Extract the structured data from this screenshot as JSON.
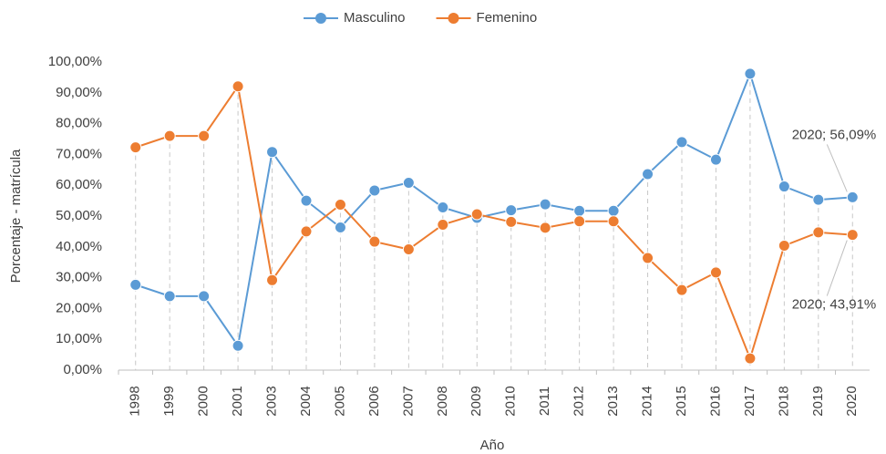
{
  "chart_data": {
    "type": "line",
    "x_label": "Año",
    "y_label": "Porcentaje - matrícula",
    "categories": [
      "1998",
      "1999",
      "2000",
      "2001",
      "2003",
      "2004",
      "2005",
      "2006",
      "2007",
      "2008",
      "2009",
      "2010",
      "2011",
      "2012",
      "2013",
      "2014",
      "2015",
      "2016",
      "2017",
      "2018",
      "2019",
      "2020"
    ],
    "series": [
      {
        "name": "Masculino",
        "color": "#5b9bd5",
        "values": [
          27.7,
          24,
          24,
          7.9,
          70.8,
          55,
          46.3,
          58.3,
          60.8,
          52.8,
          49.4,
          51.9,
          53.8,
          51.7,
          51.7,
          63.6,
          74,
          68.3,
          96.2,
          59.6,
          55.3,
          56.09
        ],
        "value_labels": [
          null,
          null,
          null,
          null,
          null,
          null,
          null,
          null,
          null,
          null,
          null,
          null,
          null,
          null,
          null,
          null,
          null,
          null,
          null,
          null,
          null,
          "2020; 56,09%"
        ]
      },
      {
        "name": "Femenino",
        "color": "#ed7d31",
        "values": [
          72.3,
          76,
          76,
          92.1,
          29.2,
          45,
          53.7,
          41.7,
          39.2,
          47.2,
          50.6,
          48.1,
          46.2,
          48.3,
          48.3,
          36.4,
          26,
          31.7,
          3.8,
          40.4,
          44.7,
          43.91
        ],
        "value_labels": [
          null,
          null,
          null,
          null,
          null,
          null,
          null,
          null,
          null,
          null,
          null,
          null,
          null,
          null,
          null,
          null,
          null,
          null,
          null,
          null,
          null,
          "2020; 43,91%"
        ]
      }
    ],
    "ylim": [
      0,
      100
    ],
    "yticks": [
      {
        "value": 0,
        "label": "0,00%"
      },
      {
        "value": 10,
        "label": "10,00%"
      },
      {
        "value": 20,
        "label": "20,00%"
      },
      {
        "value": 30,
        "label": "30,00%"
      },
      {
        "value": 40,
        "label": "40,00%"
      },
      {
        "value": 50,
        "label": "50,00%"
      },
      {
        "value": 60,
        "label": "60,00%"
      },
      {
        "value": 70,
        "label": "70,00%"
      },
      {
        "value": 80,
        "label": "80,00%"
      },
      {
        "value": 90,
        "label": "90,00%"
      },
      {
        "value": 100,
        "label": "100,00%"
      }
    ],
    "grid": false,
    "legend": "top"
  }
}
